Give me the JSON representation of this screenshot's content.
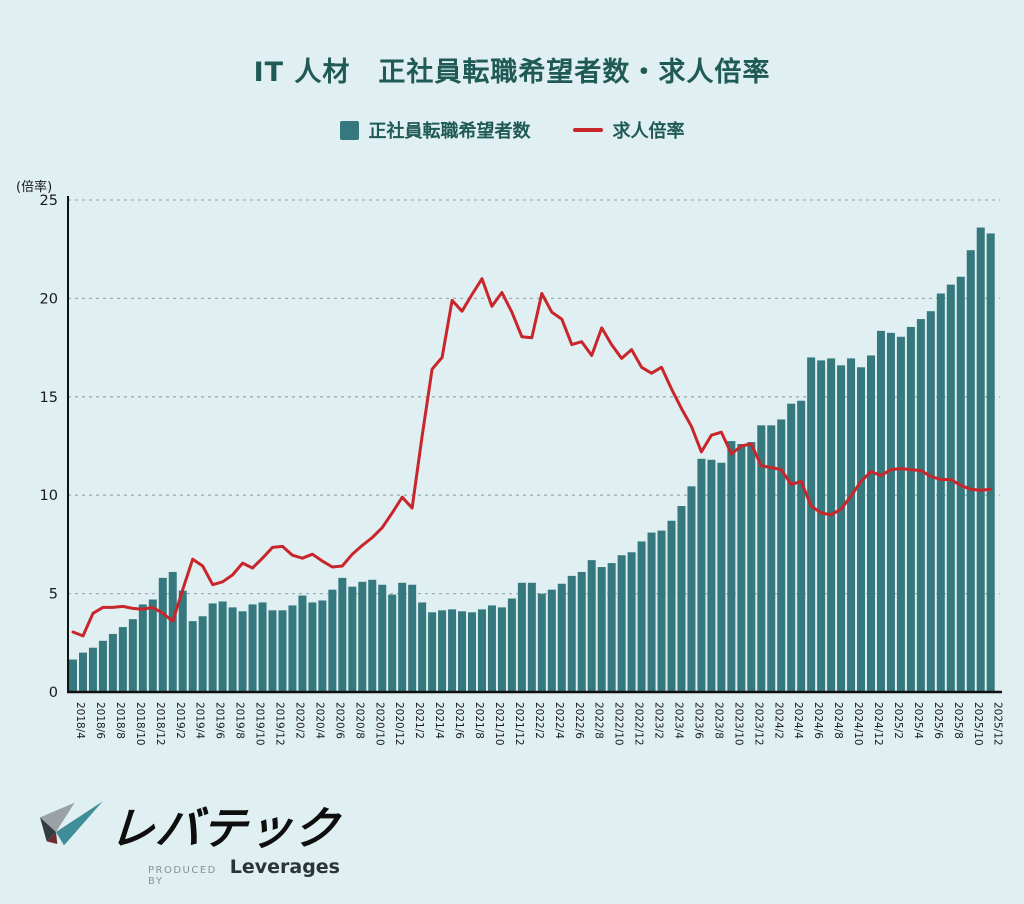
{
  "title": "IT 人材　正社員転職希望者数・求人倍率",
  "y_axis_unit": "(倍率)",
  "legend": {
    "bar_label": "正社員転職希望者数",
    "line_label": "求人倍率"
  },
  "colors": {
    "background": "#dfeff2",
    "bar": "#35797f",
    "line": "#c9262c",
    "grid": "#9fb0b3",
    "axis": "#111111",
    "title": "#1f5a55",
    "tick_text": "#1a1a1a"
  },
  "logo": {
    "brand": "レバテック",
    "produced_by": "PRODUCED BY",
    "company": "Leverages"
  },
  "chart_data": {
    "type": "combo",
    "grid": "dashed-horizontal",
    "legend_position": "top-center",
    "ylim": [
      0,
      25
    ],
    "yticks": [
      0,
      5,
      10,
      15,
      20,
      25
    ],
    "tick_label_every": 2,
    "categories": [
      "2018/4",
      "2018/5",
      "2018/6",
      "2018/7",
      "2018/8",
      "2018/9",
      "2018/10",
      "2018/11",
      "2018/12",
      "2019/1",
      "2019/2",
      "2019/3",
      "2019/4",
      "2019/5",
      "2019/6",
      "2019/7",
      "2019/8",
      "2019/9",
      "2019/10",
      "2019/11",
      "2019/12",
      "2020/1",
      "2020/2",
      "2020/3",
      "2020/4",
      "2020/5",
      "2020/6",
      "2020/7",
      "2020/8",
      "2020/9",
      "2020/10",
      "2020/11",
      "2020/12",
      "2021/1",
      "2021/2",
      "2021/3",
      "2021/4",
      "2021/5",
      "2021/6",
      "2021/7",
      "2021/8",
      "2021/9",
      "2021/10",
      "2021/11",
      "2021/12",
      "2022/1",
      "2022/2",
      "2022/3",
      "2022/4",
      "2022/5",
      "2022/6",
      "2022/7",
      "2022/8",
      "2022/9",
      "2022/10",
      "2022/11",
      "2022/12",
      "2023/1",
      "2023/2",
      "2023/3",
      "2023/4",
      "2023/5",
      "2023/6",
      "2023/7",
      "2023/8",
      "2023/9",
      "2023/10",
      "2023/11",
      "2023/12",
      "2024/1",
      "2024/2",
      "2024/3",
      "2024/4",
      "2024/5",
      "2024/6",
      "2024/7",
      "2024/8",
      "2024/9",
      "2024/10",
      "2024/11",
      "2024/12",
      "2025/1",
      "2025/2",
      "2025/3",
      "2025/4",
      "2025/5",
      "2025/6",
      "2025/7",
      "2025/8",
      "2025/9",
      "2025/10",
      "2025/11",
      "2025/12"
    ],
    "series": [
      {
        "name": "正社員転職希望者数",
        "type": "bar",
        "values": [
          1.65,
          2.0,
          2.25,
          2.6,
          2.95,
          3.3,
          3.7,
          4.45,
          4.7,
          5.8,
          6.1,
          5.15,
          3.6,
          3.85,
          4.5,
          4.6,
          4.3,
          4.1,
          4.45,
          4.55,
          4.15,
          4.15,
          4.4,
          4.9,
          4.55,
          4.65,
          5.2,
          5.8,
          5.35,
          5.6,
          5.7,
          5.45,
          4.95,
          5.55,
          5.45,
          4.55,
          4.05,
          4.15,
          4.2,
          4.1,
          4.05,
          4.2,
          4.4,
          4.3,
          4.75,
          5.55,
          5.55,
          5.0,
          5.2,
          5.5,
          5.9,
          6.1,
          6.7,
          6.35,
          6.55,
          6.95,
          7.1,
          7.65,
          8.1,
          8.2,
          8.7,
          9.45,
          10.45,
          11.85,
          11.8,
          11.65,
          12.75,
          12.6,
          12.7,
          13.55,
          13.55,
          13.85,
          14.65,
          14.8,
          17.0,
          16.85,
          16.95,
          16.6,
          16.95,
          16.5,
          17.1,
          18.35,
          18.25,
          18.05,
          18.55,
          18.95,
          19.35,
          20.25,
          20.7,
          21.1,
          22.45,
          23.6,
          23.3
        ]
      },
      {
        "name": "求人倍率",
        "type": "line",
        "values": [
          3.05,
          2.85,
          4.0,
          4.3,
          4.3,
          4.35,
          4.25,
          4.2,
          4.3,
          4.0,
          3.6,
          5.2,
          6.75,
          6.4,
          5.45,
          5.6,
          5.95,
          6.55,
          6.3,
          6.8,
          7.35,
          7.4,
          6.95,
          6.8,
          7.0,
          6.65,
          6.35,
          6.4,
          7.0,
          7.45,
          7.85,
          8.35,
          9.1,
          9.9,
          9.35,
          13.0,
          16.4,
          17.0,
          19.9,
          19.35,
          20.2,
          21.0,
          19.6,
          20.3,
          19.3,
          18.05,
          18.0,
          20.25,
          19.3,
          18.95,
          17.65,
          17.8,
          17.1,
          18.5,
          17.65,
          16.95,
          17.4,
          16.5,
          16.2,
          16.5,
          15.4,
          14.4,
          13.5,
          12.2,
          13.05,
          13.2,
          12.1,
          12.5,
          12.6,
          11.5,
          11.4,
          11.3,
          10.55,
          10.7,
          9.45,
          9.1,
          9.0,
          9.3,
          9.95,
          10.7,
          11.2,
          11.0,
          11.3,
          11.35,
          11.3,
          11.25,
          10.95,
          10.8,
          10.8,
          10.5,
          10.3,
          10.25,
          10.3
        ]
      }
    ]
  }
}
